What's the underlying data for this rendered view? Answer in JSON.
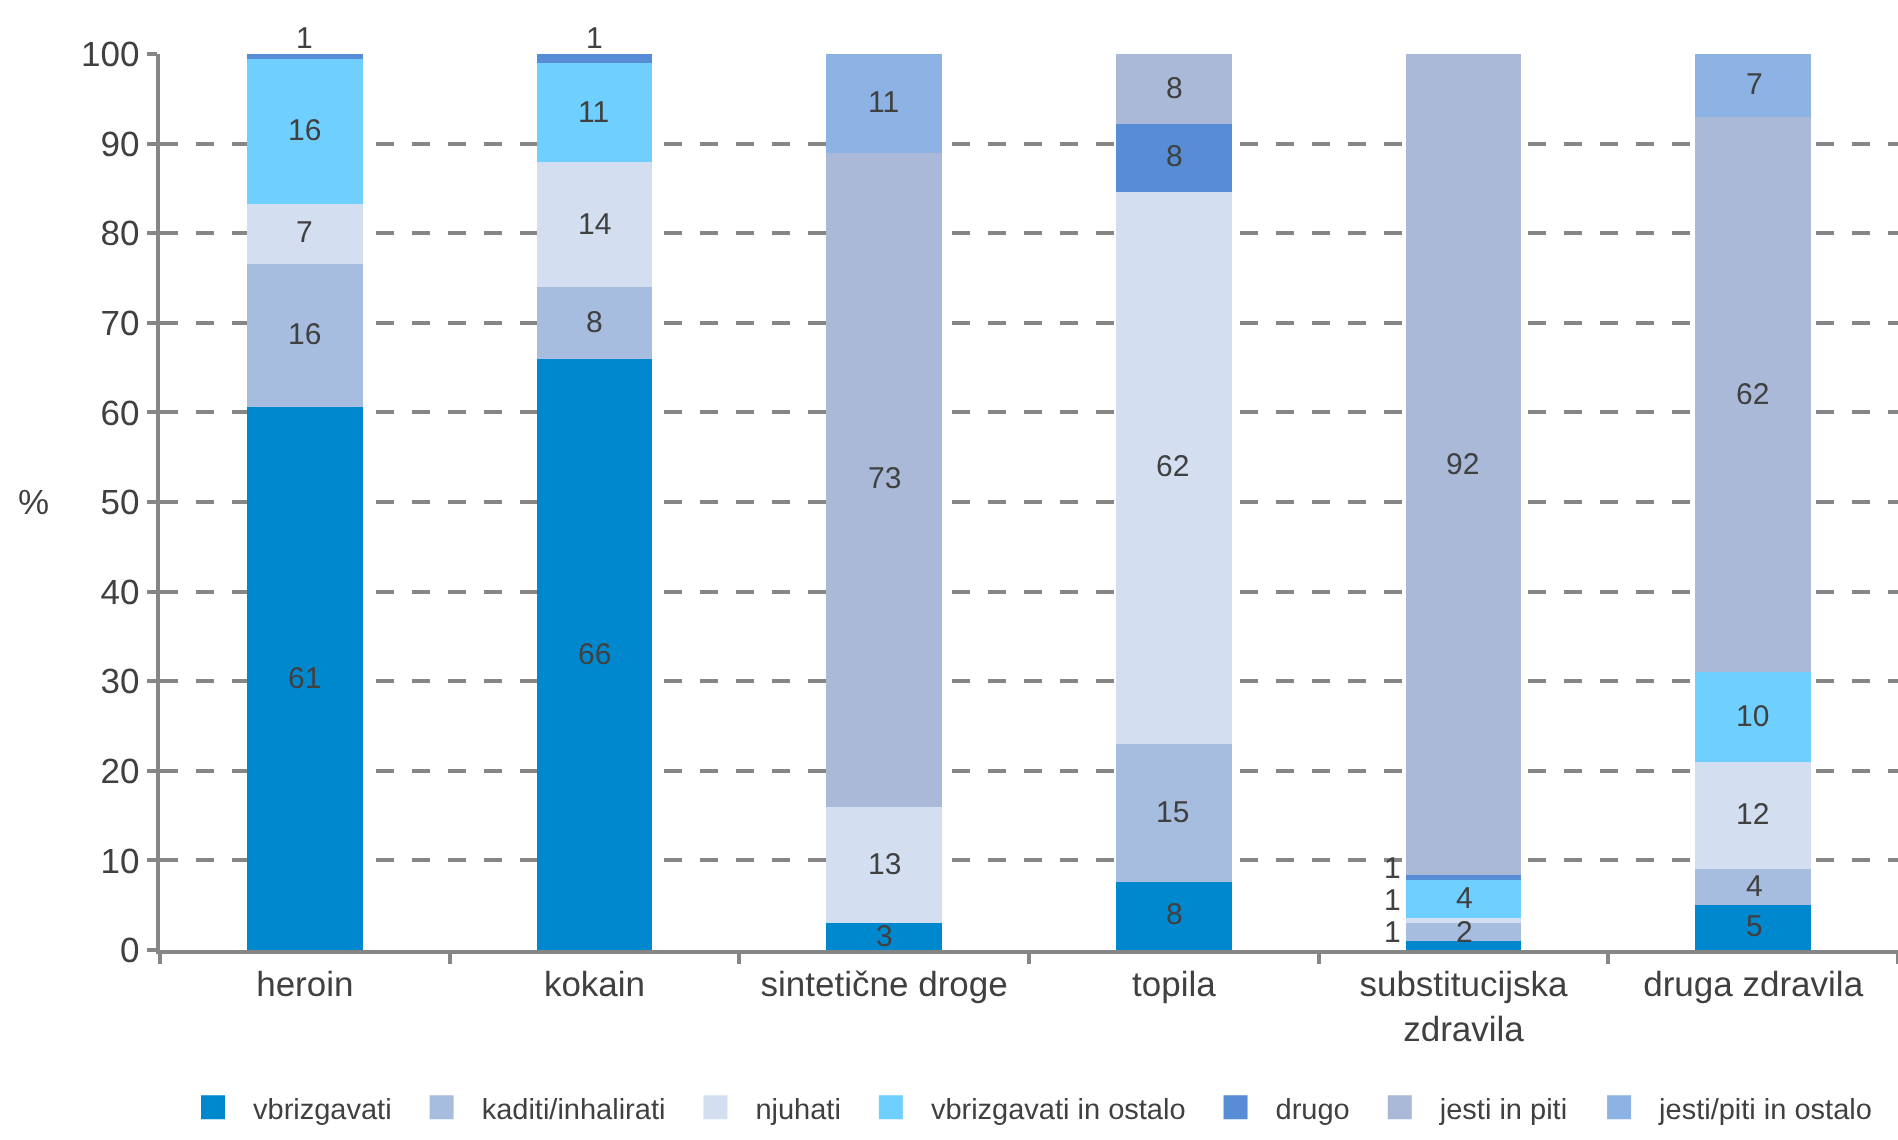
{
  "chart_data": {
    "type": "bar",
    "stacked": true,
    "ylabel": "%",
    "categories": [
      "heroin",
      "kokain",
      "sintetične droge",
      "topila",
      "substitucijska zdravila",
      "druga zdravila"
    ],
    "ylim": [
      0,
      100
    ],
    "yticks": [
      0,
      10,
      20,
      30,
      40,
      50,
      60,
      70,
      80,
      90,
      100
    ],
    "grid": "y",
    "legend": "bottom",
    "series": [
      {
        "name": "vbrizgavati",
        "color": "#0088cf",
        "values": [
          60.6,
          66,
          3,
          7.6,
          1,
          5
        ],
        "value_labels": [
          "61",
          "66",
          "3",
          "8",
          "1",
          "5"
        ]
      },
      {
        "name": "kaditi/inhalirati",
        "color": "#a6bddf",
        "values": [
          16,
          8,
          null,
          15.4,
          2,
          4
        ],
        "value_labels": [
          "16",
          "8",
          null,
          "15",
          "2",
          "4"
        ]
      },
      {
        "name": "njuhati",
        "color": "#d3dff0",
        "values": [
          6.7,
          14,
          13,
          61.6,
          0.6,
          12
        ],
        "value_labels": [
          "7",
          "14",
          "13",
          "62",
          "1",
          "12"
        ]
      },
      {
        "name": "vbrizgavati in ostalo",
        "color": "#6fcfff",
        "values": [
          16.1,
          11,
          null,
          null,
          4.2,
          10
        ],
        "value_labels": [
          "16",
          "11",
          null,
          null,
          "4",
          "10"
        ]
      },
      {
        "name": "drugo",
        "color": "#568dd6",
        "values": [
          0.6,
          1,
          null,
          7.6,
          0.6,
          null
        ],
        "value_labels": [
          "1",
          "1",
          null,
          "8",
          "1",
          null
        ]
      },
      {
        "name": "jesti in piti",
        "color": "#aab9d8",
        "values": [
          null,
          null,
          73,
          7.8,
          91.6,
          62
        ],
        "value_labels": [
          null,
          null,
          "73",
          "8",
          "92",
          "62"
        ]
      },
      {
        "name": "jesti/piti in ostalo",
        "color": "#8cb3e3",
        "values": [
          null,
          null,
          11,
          null,
          null,
          7
        ],
        "value_labels": [
          null,
          null,
          "11",
          null,
          null,
          "7"
        ]
      }
    ]
  }
}
